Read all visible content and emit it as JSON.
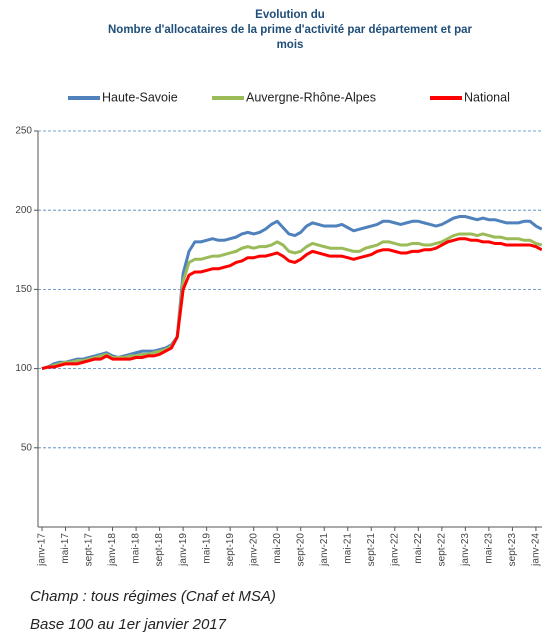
{
  "chart_data": {
    "type": "line",
    "title": [
      "Evolution du",
      "Nombre d'allocataires de la prime d'activité par département et par",
      "mois"
    ],
    "categories": [
      "janv-17",
      null,
      null,
      null,
      "mai-17",
      null,
      null,
      null,
      "sept-17",
      null,
      null,
      null,
      "janv-18",
      null,
      null,
      null,
      "mai-18",
      null,
      null,
      null,
      "sept-18",
      null,
      null,
      null,
      "janv-19",
      null,
      null,
      null,
      "mai-19",
      null,
      null,
      null,
      "sept-19",
      null,
      null,
      null,
      "janv-20",
      null,
      null,
      null,
      "mai-20",
      null,
      null,
      null,
      "sept-20",
      null,
      null,
      null,
      "janv-21",
      null,
      null,
      null,
      "mai-21",
      null,
      null,
      null,
      "sept-21",
      null,
      null,
      null,
      "janv-22",
      null,
      null,
      null,
      "mai-22",
      null,
      null,
      null,
      "sept-22",
      null,
      null,
      null,
      "janv-23",
      null,
      null,
      null,
      "mai-23",
      null,
      null,
      null,
      "sept-23",
      null,
      null,
      null,
      "janv-24",
      null
    ],
    "series": [
      {
        "name": "Haute-Savoie",
        "color": "#4f81bd",
        "values": [
          100,
          101,
          103,
          104,
          104,
          105,
          106,
          106,
          107,
          108,
          109,
          110,
          108,
          107,
          108,
          109,
          110,
          111,
          111,
          111,
          112,
          113,
          115,
          120,
          160,
          174,
          180,
          180,
          181,
          182,
          181,
          181,
          182,
          183,
          185,
          186,
          185,
          186,
          188,
          191,
          193,
          189,
          185,
          184,
          186,
          190,
          192,
          191,
          190,
          190,
          190,
          191,
          189,
          187,
          188,
          189,
          190,
          191,
          193,
          193,
          192,
          191,
          192,
          193,
          193,
          192,
          191,
          190,
          191,
          193,
          195,
          196,
          196,
          195,
          194,
          195,
          194,
          194,
          193,
          192,
          192,
          192,
          193,
          193,
          190,
          188
        ]
      },
      {
        "name": "Auvergne-Rhône-Alpes",
        "color": "#9bbb59",
        "values": [
          100,
          101,
          102,
          103,
          104,
          104,
          105,
          105,
          106,
          107,
          108,
          109,
          107,
          107,
          107,
          108,
          108,
          109,
          109,
          110,
          111,
          112,
          114,
          120,
          155,
          167,
          169,
          169,
          170,
          171,
          171,
          172,
          173,
          174,
          176,
          177,
          176,
          177,
          177,
          178,
          180,
          178,
          174,
          173,
          174,
          177,
          179,
          178,
          177,
          176,
          176,
          176,
          175,
          174,
          174,
          176,
          177,
          178,
          180,
          180,
          179,
          178,
          178,
          179,
          179,
          178,
          178,
          179,
          180,
          182,
          184,
          185,
          185,
          185,
          184,
          185,
          184,
          183,
          183,
          182,
          182,
          182,
          181,
          181,
          179,
          178
        ]
      },
      {
        "name": "National",
        "color": "#ff0000",
        "values": [
          100,
          101,
          101,
          102,
          103,
          103,
          103,
          104,
          105,
          106,
          106,
          108,
          106,
          106,
          106,
          106,
          107,
          107,
          108,
          108,
          109,
          111,
          113,
          120,
          150,
          159,
          161,
          161,
          162,
          163,
          163,
          164,
          165,
          167,
          168,
          170,
          170,
          171,
          171,
          172,
          173,
          171,
          168,
          167,
          169,
          172,
          174,
          173,
          172,
          171,
          171,
          171,
          170,
          169,
          170,
          171,
          172,
          174,
          175,
          175,
          174,
          173,
          173,
          174,
          174,
          175,
          175,
          176,
          178,
          180,
          181,
          182,
          182,
          181,
          181,
          180,
          180,
          179,
          179,
          178,
          178,
          178,
          178,
          178,
          177,
          175
        ]
      }
    ],
    "ylim": [
      0,
      250
    ],
    "yticks": [
      50,
      100,
      150,
      200,
      250
    ],
    "grid": true,
    "legend": "top",
    "notes": [
      "Champ : tous régimes (Cnaf et MSA)",
      "Base 100 au 1er janvier 2017"
    ]
  }
}
